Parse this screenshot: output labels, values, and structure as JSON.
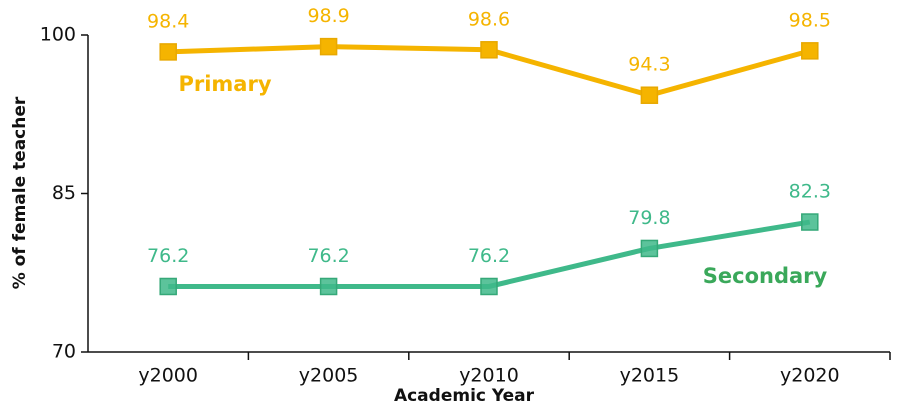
{
  "chart_data": {
    "type": "line",
    "x_label": "Academic Year",
    "y_label": "% of female teacher",
    "categories": [
      "y2000",
      "y2005",
      "y2010",
      "y2015",
      "y2020"
    ],
    "series": [
      {
        "name": "Primary",
        "color": "#f5b400",
        "values": [
          98.4,
          98.9,
          98.6,
          94.3,
          98.5
        ]
      },
      {
        "name": "Secondary",
        "color": "#3fb98a",
        "values": [
          76.2,
          76.2,
          76.2,
          79.8,
          82.3
        ]
      }
    ],
    "ylim": [
      70,
      100
    ],
    "yticks": [
      70,
      85,
      100
    ],
    "grid": false
  }
}
